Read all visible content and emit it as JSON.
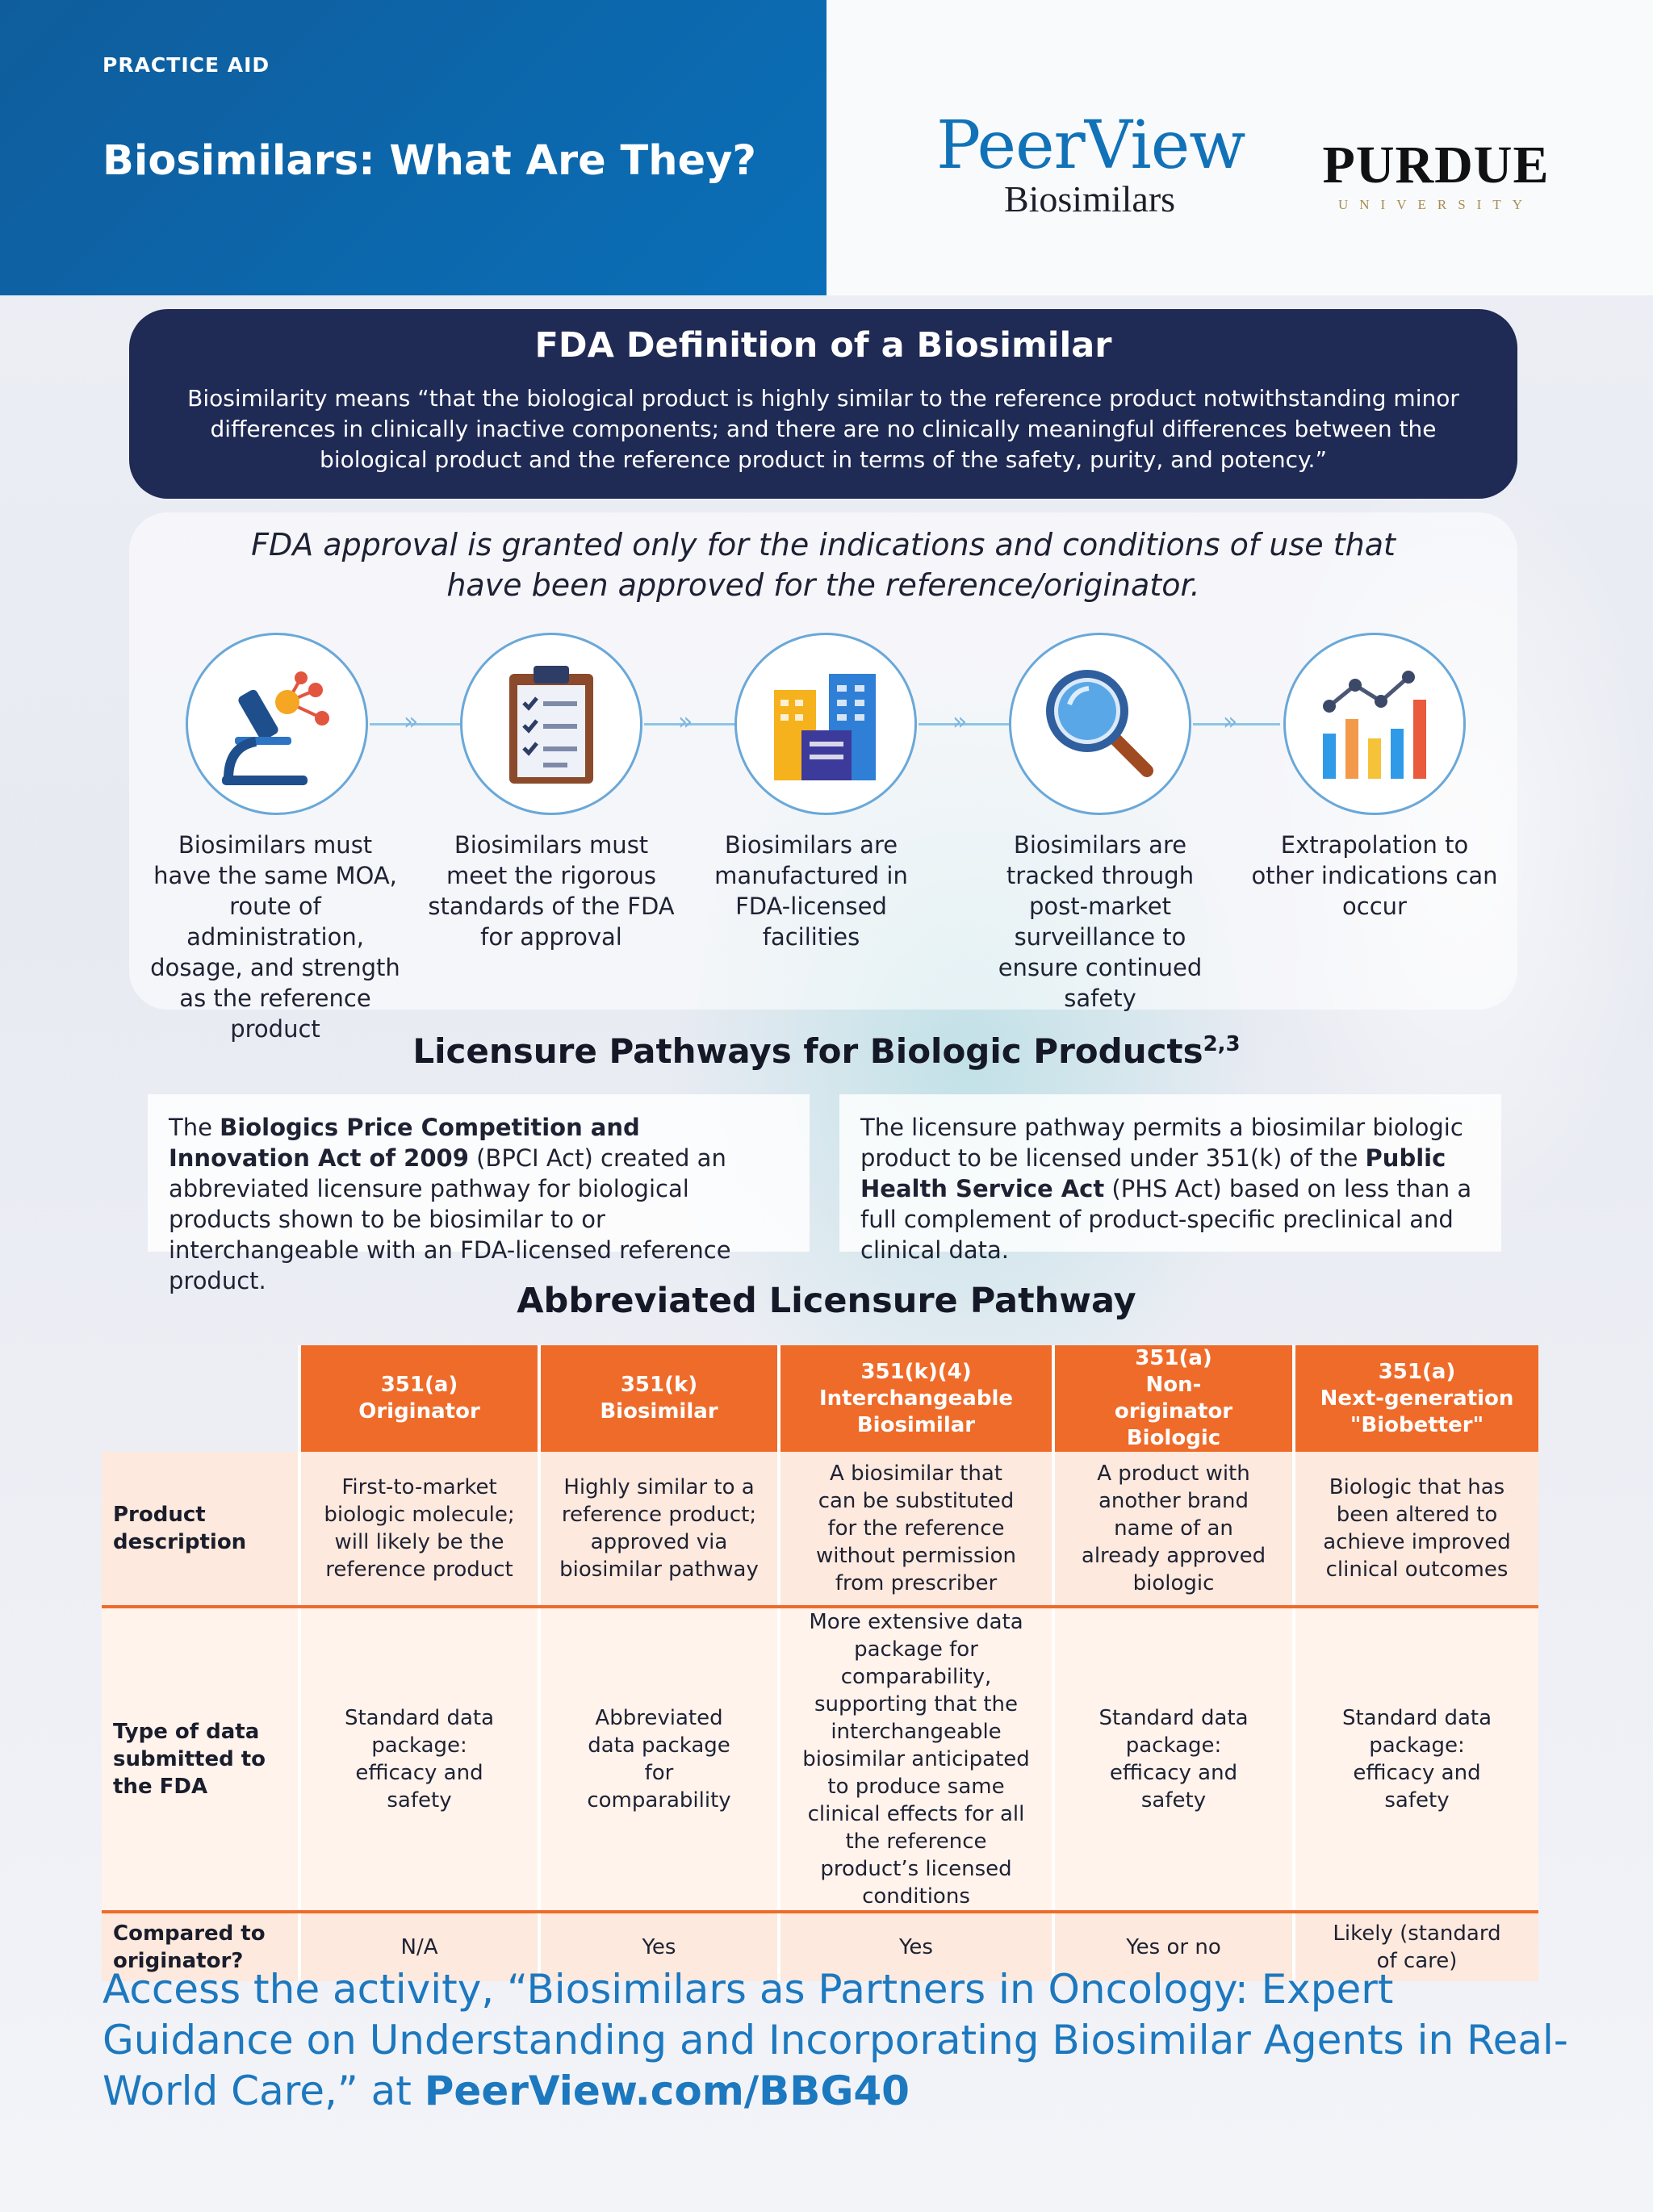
{
  "header": {
    "tag": "PRACTICE AID",
    "title": "Biosimilars: What Are They?",
    "peerview_logo": {
      "word": "PeerView",
      "sub": "Biosimilars"
    },
    "purdue_logo": {
      "word": "PURDUE",
      "sub": "UNIVERSITY"
    }
  },
  "definition": {
    "title": "FDA Definition of a Biosimilar",
    "text": "Biosimilarity means “that the biological product is highly similar to the reference product notwithstanding minor differences in clinically inactive components; and there are no clinically meaningful differences between the biological product and the reference product in terms of the safety, purity, and potency.”"
  },
  "approval": {
    "statement": "FDA approval is granted only for the indications and conditions of use that have been approved for the reference/originator.",
    "steps": [
      {
        "icon": "microscope-molecule-icon",
        "text": "Biosimilars must have the same MOA, route of administration, dosage, and  strength as the reference product"
      },
      {
        "icon": "clipboard-checklist-icon",
        "text": "Biosimilars must meet the rigorous standards of the FDA for approval"
      },
      {
        "icon": "buildings-icon",
        "text": "Biosimilars are manufactured in FDA-licensed facilities"
      },
      {
        "icon": "magnifying-glass-icon",
        "text": "Biosimilars are tracked through post-market surveillance to ensure continued safety"
      },
      {
        "icon": "bar-line-chart-icon",
        "text": "Extrapolation to other indications can occur"
      }
    ]
  },
  "licensure": {
    "title": "Licensure Pathways for Biologic Products",
    "title_refs": "2,3",
    "left": {
      "pre": "The ",
      "bold1": "Biologics Price Competition and Innovation Act of 2009",
      "post": " (BPCI Act) created an abbreviated licensure pathway for biological products shown to be biosimilar to or interchangeable with an FDA-licensed reference product."
    },
    "right": {
      "pre": "The licensure pathway permits a biosimilar biologic product to be licensed under 351(k) of the ",
      "bold1": "Public Health Service Act",
      "post": " (PHS Act) based on less than a full complement of product-specific preclinical and clinical data."
    }
  },
  "abbreviated": {
    "title": "Abbreviated Licensure Pathway",
    "columns": [
      {
        "code": "351(a)",
        "name": "Originator"
      },
      {
        "code": "351(k)",
        "name": "Biosimilar"
      },
      {
        "code": "351(k)(4)",
        "name": "Interchangeable Biosimilar"
      },
      {
        "code": "351(a)",
        "name": "Non-originator Biologic"
      },
      {
        "code": "351(a)",
        "name": "Next-generation \"Biobetter\""
      }
    ],
    "rows": [
      {
        "label": "Product description",
        "cells": [
          "First-to-market biologic molecule; will likely be the reference product",
          "Highly similar to a reference product; approved via biosimilar pathway",
          "A biosimilar that can be substituted for the reference without permission from prescriber",
          "A product with another brand name of an already approved biologic",
          "Biologic that has been altered to achieve improved clinical outcomes"
        ]
      },
      {
        "label": "Type of data submitted to the FDA",
        "cells": [
          "Standard data package: efficacy and safety",
          "Abbreviated data package for comparability",
          "More extensive data package for comparability, supporting that the interchangeable biosimilar anticipated to produce same clinical effects for all the reference product’s licensed conditions",
          "Standard data package: efficacy and safety",
          "Standard data package: efficacy and safety"
        ]
      },
      {
        "label": "Compared to originator?",
        "cells": [
          "N/A",
          "Yes",
          "Yes",
          "Yes or no",
          "Likely (standard of care)"
        ]
      }
    ]
  },
  "access": {
    "text": "Access the activity, “Biosimilars as Partners in Oncology: Expert Guidance on Understanding and Incorporating Biosimilar Agents in Real-World Care,” at ",
    "link": "PeerView.com/BBG40"
  },
  "colors": {
    "brand_blue": "#0a6fb8",
    "navy": "#1f2a55",
    "orange": "#ef6b2a",
    "link_blue": "#1c78bf"
  }
}
